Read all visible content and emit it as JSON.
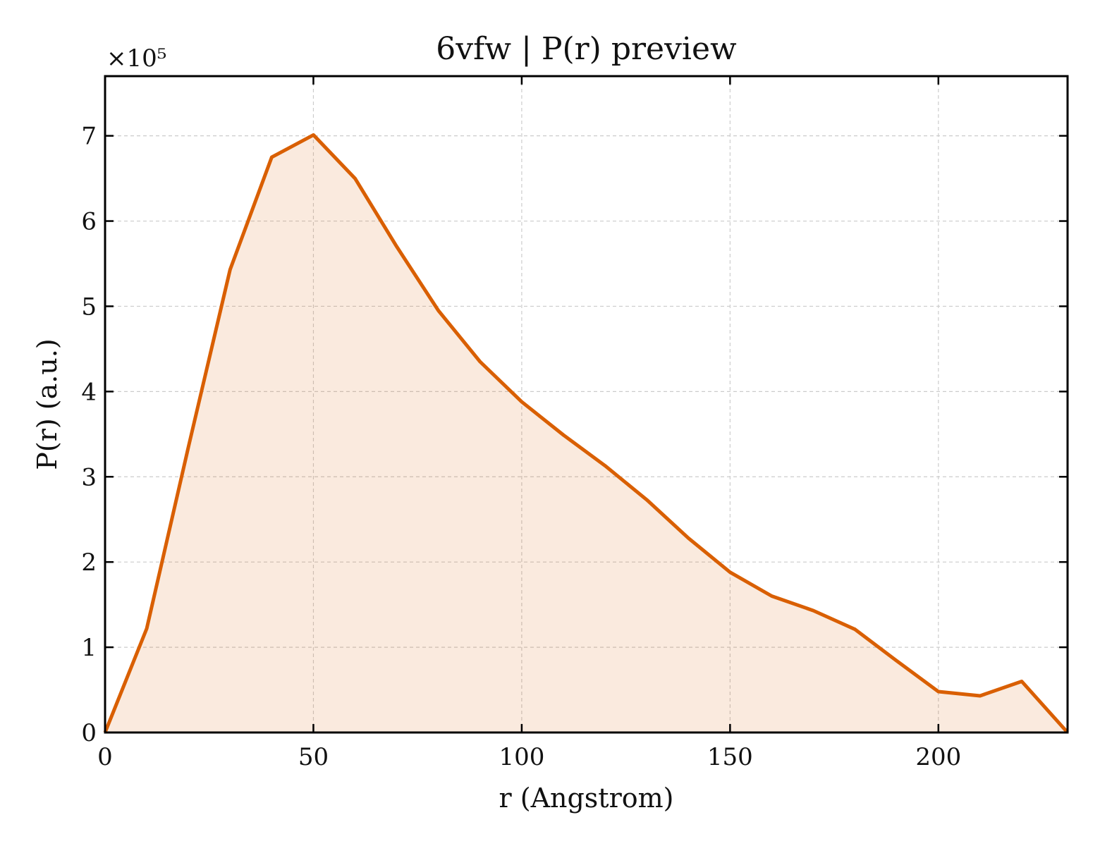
{
  "chart_data": {
    "type": "area",
    "title": "6vfw | P(r) preview",
    "xlabel": "r (Angstrom)",
    "ylabel": "P(r) (a.u.)",
    "y_scale_label": "×10⁵",
    "y_scale_factor": 100000,
    "xlim": [
      0,
      231
    ],
    "ylim": [
      0,
      770000
    ],
    "x_ticks": [
      0,
      50,
      100,
      150,
      200
    ],
    "y_ticks": [
      0,
      100000,
      200000,
      300000,
      400000,
      500000,
      600000,
      700000
    ],
    "y_tick_labels": [
      "0",
      "1",
      "2",
      "3",
      "4",
      "5",
      "6",
      "7"
    ],
    "x_tick_labels": [
      "0",
      "50",
      "100",
      "150",
      "200"
    ],
    "grid": true,
    "series": [
      {
        "x": [
          0,
          10,
          20,
          30,
          40,
          50,
          60,
          70,
          80,
          90,
          100,
          110,
          120,
          130,
          140,
          150,
          160,
          170,
          180,
          190,
          200,
          210,
          220,
          231
        ],
        "y": [
          0,
          122000,
          335000,
          543000,
          675000,
          701000,
          650000,
          570000,
          495000,
          435000,
          388000,
          349000,
          313000,
          273000,
          228000,
          188000,
          160000,
          143000,
          121000,
          84000,
          48000,
          43000,
          60000,
          0
        ],
        "color": "#d95f02",
        "fill_color": "#d95f02",
        "fill_opacity": 0.13
      }
    ]
  }
}
